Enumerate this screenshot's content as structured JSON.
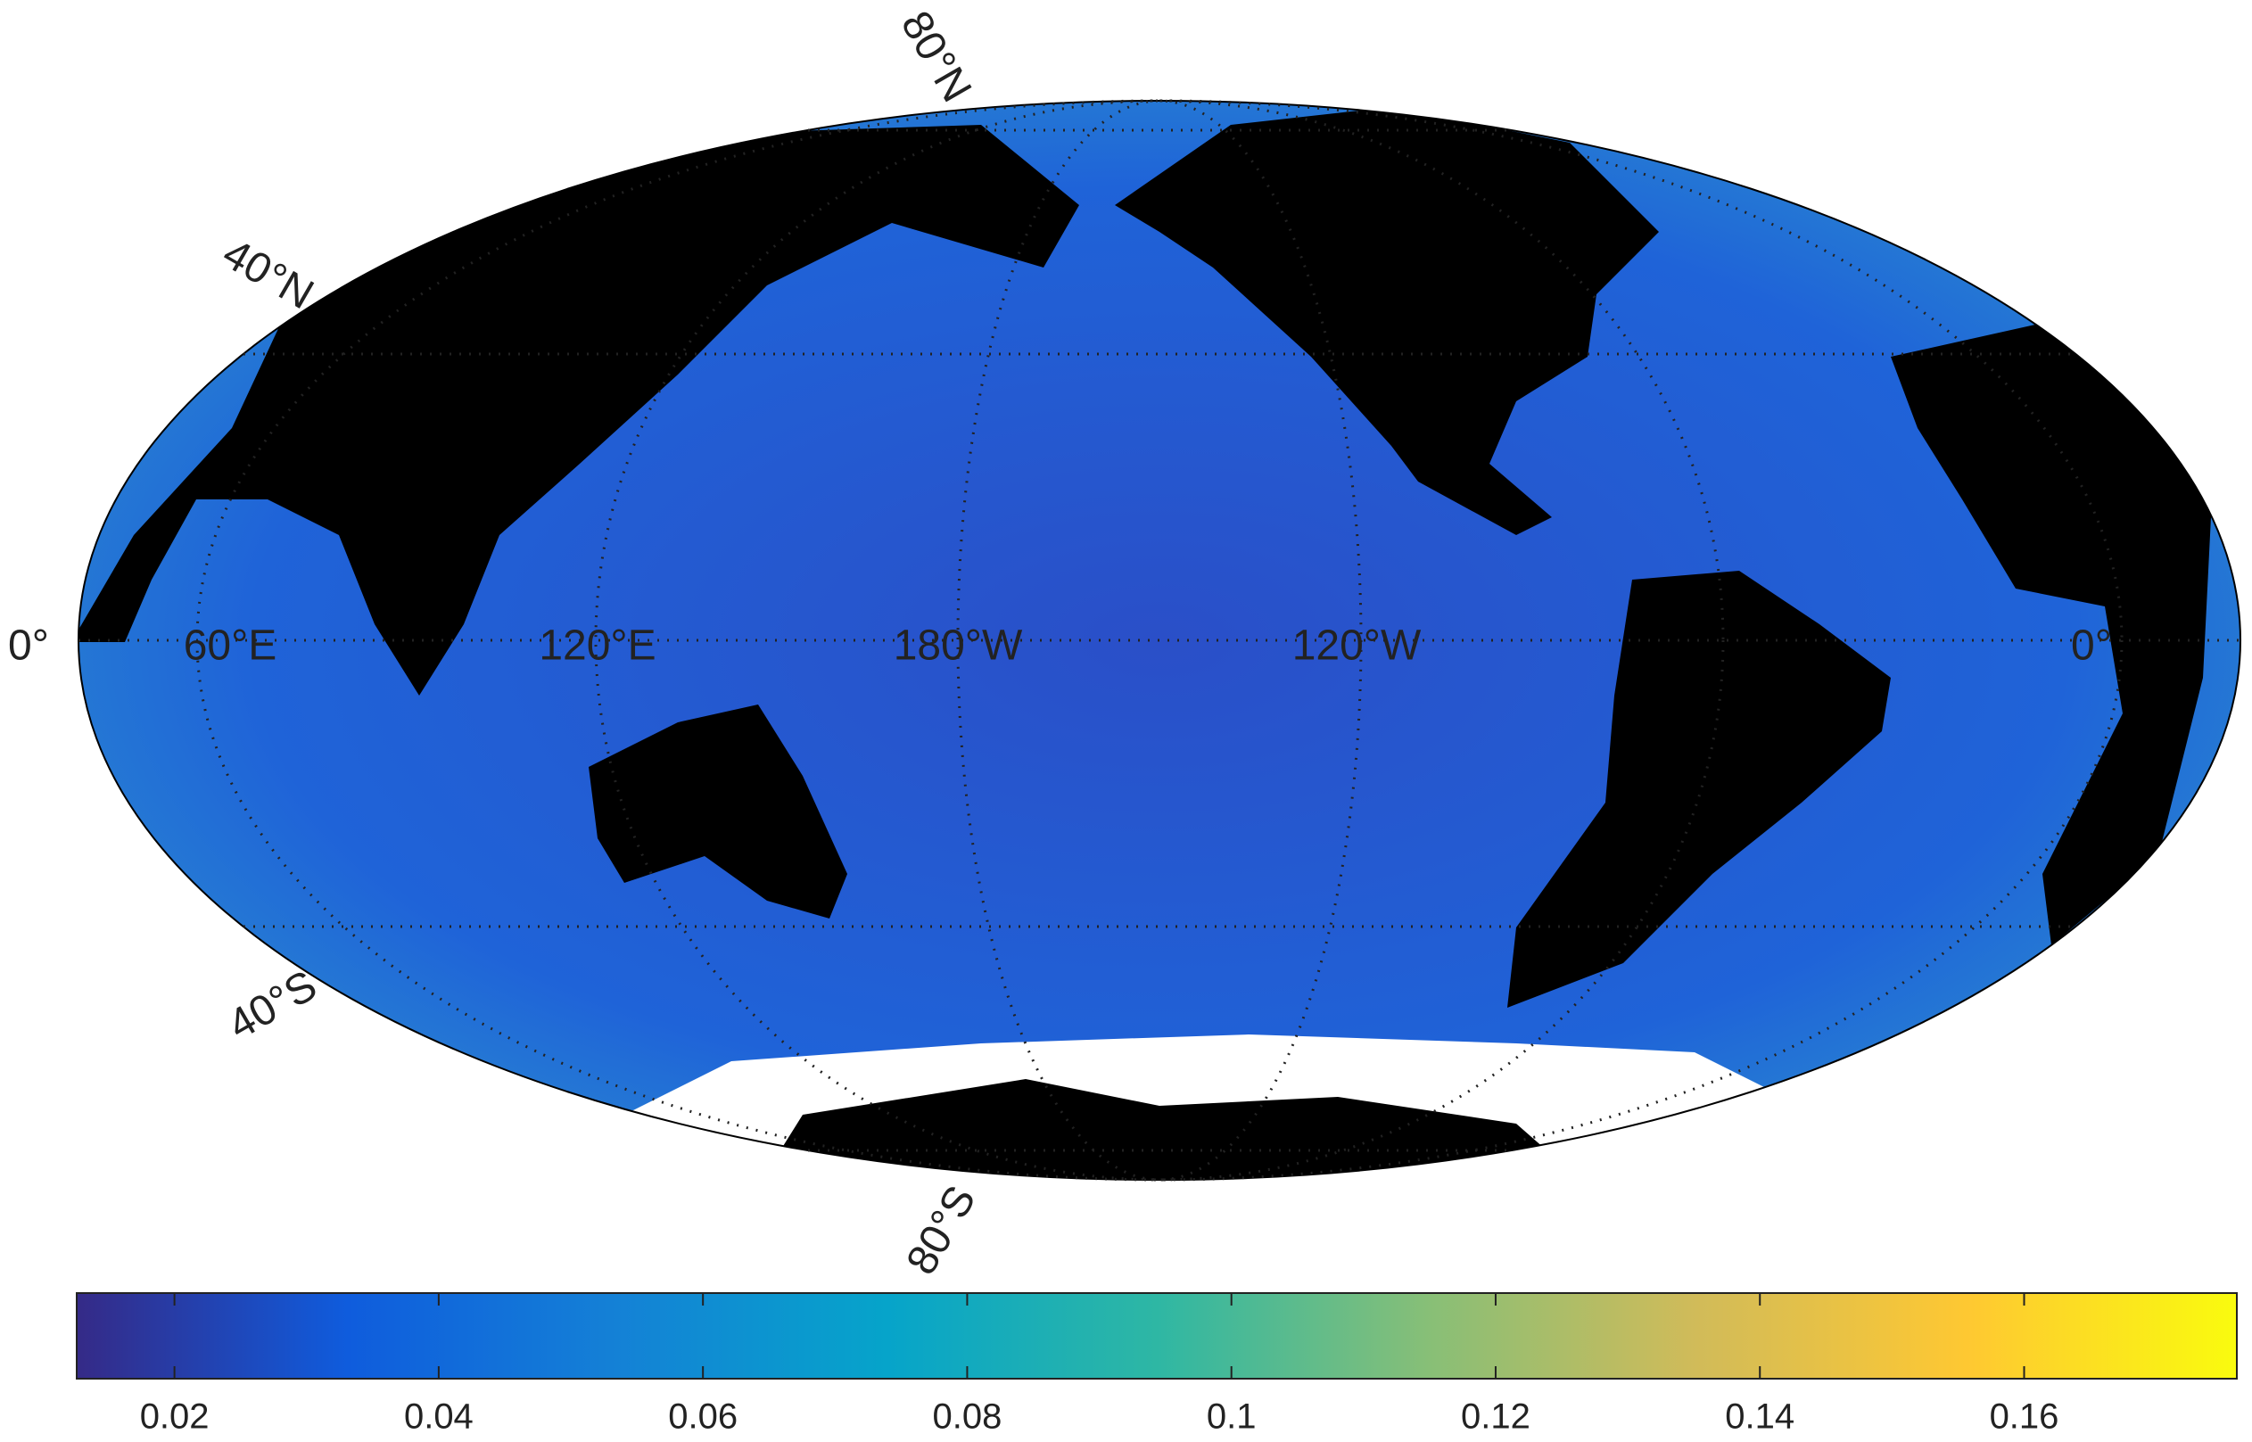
{
  "map": {
    "projection": "mollweide",
    "lat_labels": [
      "80°N",
      "40°N",
      "40°S",
      "80°S"
    ],
    "lon_labels": [
      "0°",
      "60°E",
      "120°E",
      "180°W",
      "120°W",
      "0°"
    ]
  },
  "colorbar": {
    "lim": [
      0.0126,
      0.1761
    ],
    "ticks": [
      0.02,
      0.04,
      0.06,
      0.08,
      0.1,
      0.12,
      0.14,
      0.16
    ],
    "colormap": [
      "#352a87",
      "#0f5cdd",
      "#1481d6",
      "#06a4ca",
      "#2eb7a4",
      "#87bf77",
      "#d1bb59",
      "#fec832",
      "#f9fb0e"
    ]
  }
}
